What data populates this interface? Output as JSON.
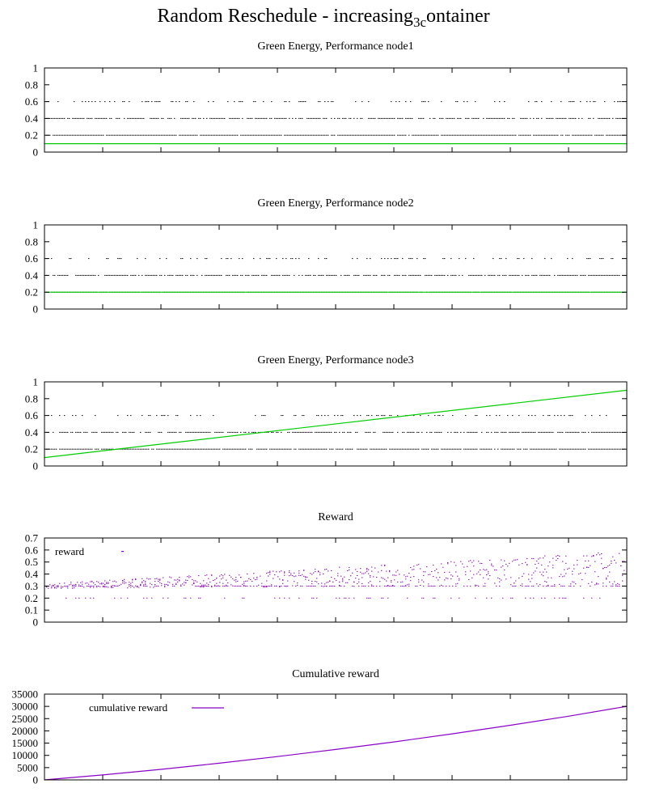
{
  "title": {
    "prefix": "Random Reschedule - increasing",
    "sub": "3c",
    "suffix": "ontainer"
  },
  "colors": {
    "green": "#00cc00",
    "purple": "#8b00c8",
    "points": "#000000"
  },
  "chart_data": [
    {
      "type": "scatter",
      "title": "Green Energy, Performance node1",
      "ylim": [
        0,
        1
      ],
      "yticks": [
        "0",
        "0.2",
        "0.4",
        "0.6",
        "0.8",
        "1"
      ],
      "xlim": [
        0,
        1000
      ],
      "grid": false,
      "point_levels": [
        0.2,
        0.4,
        0.6
      ],
      "series": [
        {
          "kind": "points",
          "levels": [
            0.2,
            0.4,
            0.6
          ]
        },
        {
          "kind": "line",
          "color": "green",
          "x": [
            0,
            1000
          ],
          "y": [
            0.1,
            0.1
          ]
        }
      ]
    },
    {
      "type": "scatter",
      "title": "Green Energy, Performance node2",
      "ylim": [
        0,
        1
      ],
      "yticks": [
        "0",
        "0.2",
        "0.4",
        "0.6",
        "0.8",
        "1"
      ],
      "xlim": [
        0,
        1000
      ],
      "grid": false,
      "point_levels": [
        0.2,
        0.4,
        0.6
      ],
      "series": [
        {
          "kind": "points",
          "levels": [
            0.2,
            0.4,
            0.6
          ]
        },
        {
          "kind": "line",
          "color": "green",
          "x": [
            0,
            1000
          ],
          "y": [
            0.2,
            0.2
          ]
        }
      ]
    },
    {
      "type": "scatter",
      "title": "Green Energy, Performance node3",
      "ylim": [
        0,
        1
      ],
      "yticks": [
        "0",
        "0.2",
        "0.4",
        "0.6",
        "0.8",
        "1"
      ],
      "xlim": [
        0,
        1000
      ],
      "grid": false,
      "point_levels": [
        0.2,
        0.4,
        0.6
      ],
      "series": [
        {
          "kind": "points",
          "levels": [
            0.2,
            0.4,
            0.6
          ]
        },
        {
          "kind": "line",
          "color": "green",
          "x": [
            0,
            1000
          ],
          "y": [
            0.1,
            0.9
          ]
        }
      ]
    },
    {
      "type": "scatter",
      "title": "Reward",
      "ylim": [
        0,
        0.7
      ],
      "yticks": [
        "0",
        "0.1",
        "0.2",
        "0.3",
        "0.4",
        "0.5",
        "0.6",
        "0.7"
      ],
      "xlim": [
        0,
        1000
      ],
      "grid": false,
      "legend": {
        "label": "reward",
        "position": "top-left"
      },
      "series": [
        {
          "kind": "reward-points",
          "color": "purple",
          "name": "reward",
          "base_start": 0.3,
          "base_end": 0.45,
          "levels": [
            0.2,
            0.3
          ]
        }
      ]
    },
    {
      "type": "line",
      "title": "Cumulative reward",
      "ylim": [
        0,
        35000
      ],
      "yticks": [
        "0",
        "5000",
        "10000",
        "15000",
        "20000",
        "25000",
        "30000",
        "35000"
      ],
      "xlim": [
        0,
        1000
      ],
      "grid": false,
      "legend": {
        "label": "cumulative reward",
        "position": "top-left"
      },
      "series": [
        {
          "kind": "line",
          "color": "purple",
          "name": "cumulative reward",
          "x": [
            0,
            100,
            200,
            300,
            400,
            500,
            600,
            700,
            800,
            900,
            1000
          ],
          "y": [
            0,
            2000,
            4300,
            6800,
            9500,
            12400,
            15500,
            18800,
            22300,
            26000,
            30000
          ]
        }
      ]
    }
  ]
}
